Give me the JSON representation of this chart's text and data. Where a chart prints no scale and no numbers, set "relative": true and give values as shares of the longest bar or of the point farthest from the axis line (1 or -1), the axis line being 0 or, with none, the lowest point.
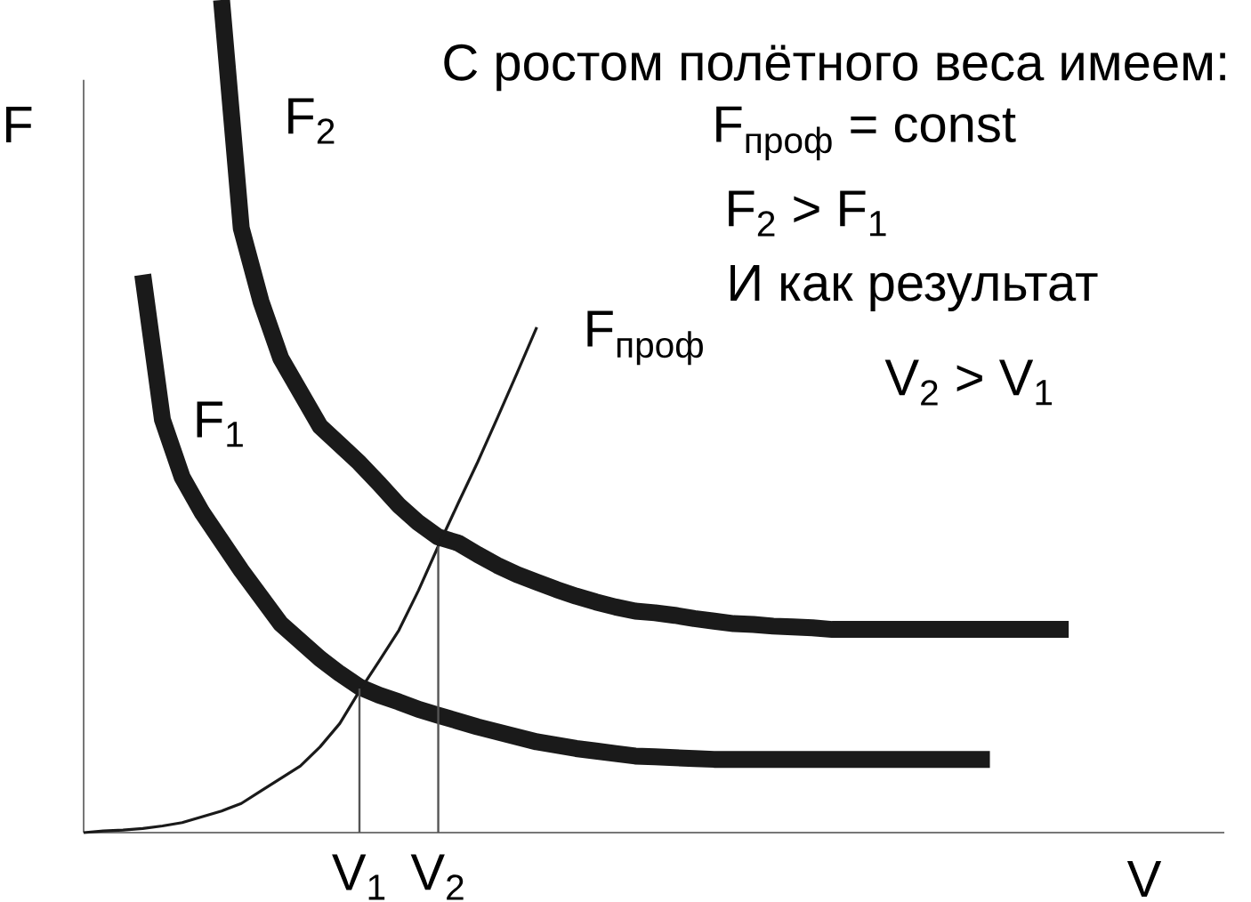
{
  "chart_data": {
    "type": "line",
    "relative": true,
    "marker": "none",
    "xlabel": "V",
    "ylabel": "F",
    "annotations": [
      "С ростом полётного веса имеем:",
      "F$_{проф}$ = const",
      "F$_{2}$ > F$_{1}$",
      "И как результат",
      "V$_{2}$ > V$_{1}$"
    ],
    "categories": [
      null,
      null,
      null,
      null,
      null,
      null,
      null,
      null,
      null,
      null,
      null,
      null,
      null,
      null,
      "V$_{1}$",
      null,
      null,
      null,
      "V$_{2}$",
      null,
      null,
      null,
      null,
      null,
      null,
      null,
      null,
      null,
      null,
      null,
      null,
      null,
      null,
      null,
      null,
      null,
      null,
      null,
      null,
      null,
      null,
      null,
      null,
      null,
      null,
      null,
      null,
      null,
      null,
      null,
      null,
      null,
      null,
      null,
      null,
      null,
      null,
      null
    ],
    "series": [
      {
        "name": "F$_{1}$",
        "color": "#1a1a1a",
        "values": [
          null,
          null,
          null,
          0.67,
          0.496,
          0.427,
          0.385,
          0.35,
          0.315,
          0.283,
          0.251,
          0.23,
          0.209,
          0.191,
          0.175,
          0.165,
          0.157,
          0.148,
          0.141,
          0.134,
          0.127,
          0.121,
          0.115,
          0.109,
          0.105,
          0.101,
          0.098,
          0.095,
          0.092,
          0.091,
          0.09,
          0.089,
          0.088,
          0.088,
          0.088,
          0.088,
          0.088,
          0.088,
          0.088,
          0.088,
          0.088,
          0.088,
          0.088,
          0.088,
          0.088,
          0.088,
          0.088,
          null,
          null,
          null,
          null,
          null,
          null,
          null,
          null,
          null,
          null,
          null
        ]
      },
      {
        "name": "F$_{2}$",
        "color": "#1a1a1a",
        "values": [
          null,
          null,
          null,
          null,
          null,
          null,
          null,
          1.0,
          0.726,
          0.638,
          0.57,
          0.529,
          0.488,
          0.466,
          0.444,
          0.419,
          0.393,
          0.372,
          0.355,
          0.348,
          0.334,
          0.321,
          0.31,
          0.301,
          0.292,
          0.284,
          0.277,
          0.271,
          0.266,
          0.264,
          0.261,
          0.257,
          0.254,
          0.251,
          0.25,
          0.248,
          0.247,
          0.246,
          0.244,
          0.244,
          0.244,
          0.244,
          0.244,
          0.244,
          0.244,
          0.244,
          0.244,
          0.244,
          0.244,
          0.244,
          0.244,
          null,
          null,
          null,
          null,
          null,
          null,
          null
        ]
      },
      {
        "name": "F$_{проф}$",
        "color": "#1a1a1a",
        "values": [
          0.0,
          0.002,
          0.003,
          0.005,
          0.008,
          0.012,
          0.019,
          0.026,
          0.035,
          0.05,
          0.065,
          0.08,
          0.103,
          0.131,
          0.17,
          0.206,
          0.243,
          0.291,
          0.344,
          0.395,
          0.445,
          0.498,
          0.552,
          0.607,
          null,
          null,
          null,
          null,
          null,
          null,
          null,
          null,
          null,
          null,
          null,
          null,
          null,
          null,
          null,
          null,
          null,
          null,
          null,
          null,
          null,
          null,
          null,
          null,
          null,
          null,
          null,
          null,
          null,
          null,
          null,
          null,
          null,
          null
        ]
      },
      {
        "type": "bar",
        "color": "#555555",
        "values": [
          null,
          null,
          null,
          null,
          null,
          null,
          null,
          null,
          null,
          null,
          null,
          null,
          null,
          null,
          0.173,
          null,
          null,
          null,
          0.344,
          null,
          null,
          null,
          null,
          null,
          null,
          null,
          null,
          null,
          null,
          null,
          null,
          null,
          null,
          null,
          null,
          null,
          null,
          null,
          null,
          null,
          null,
          null,
          null,
          null,
          null,
          null,
          null,
          null,
          null,
          null,
          null,
          null,
          null,
          null,
          null,
          null,
          null,
          null
        ]
      }
    ]
  }
}
